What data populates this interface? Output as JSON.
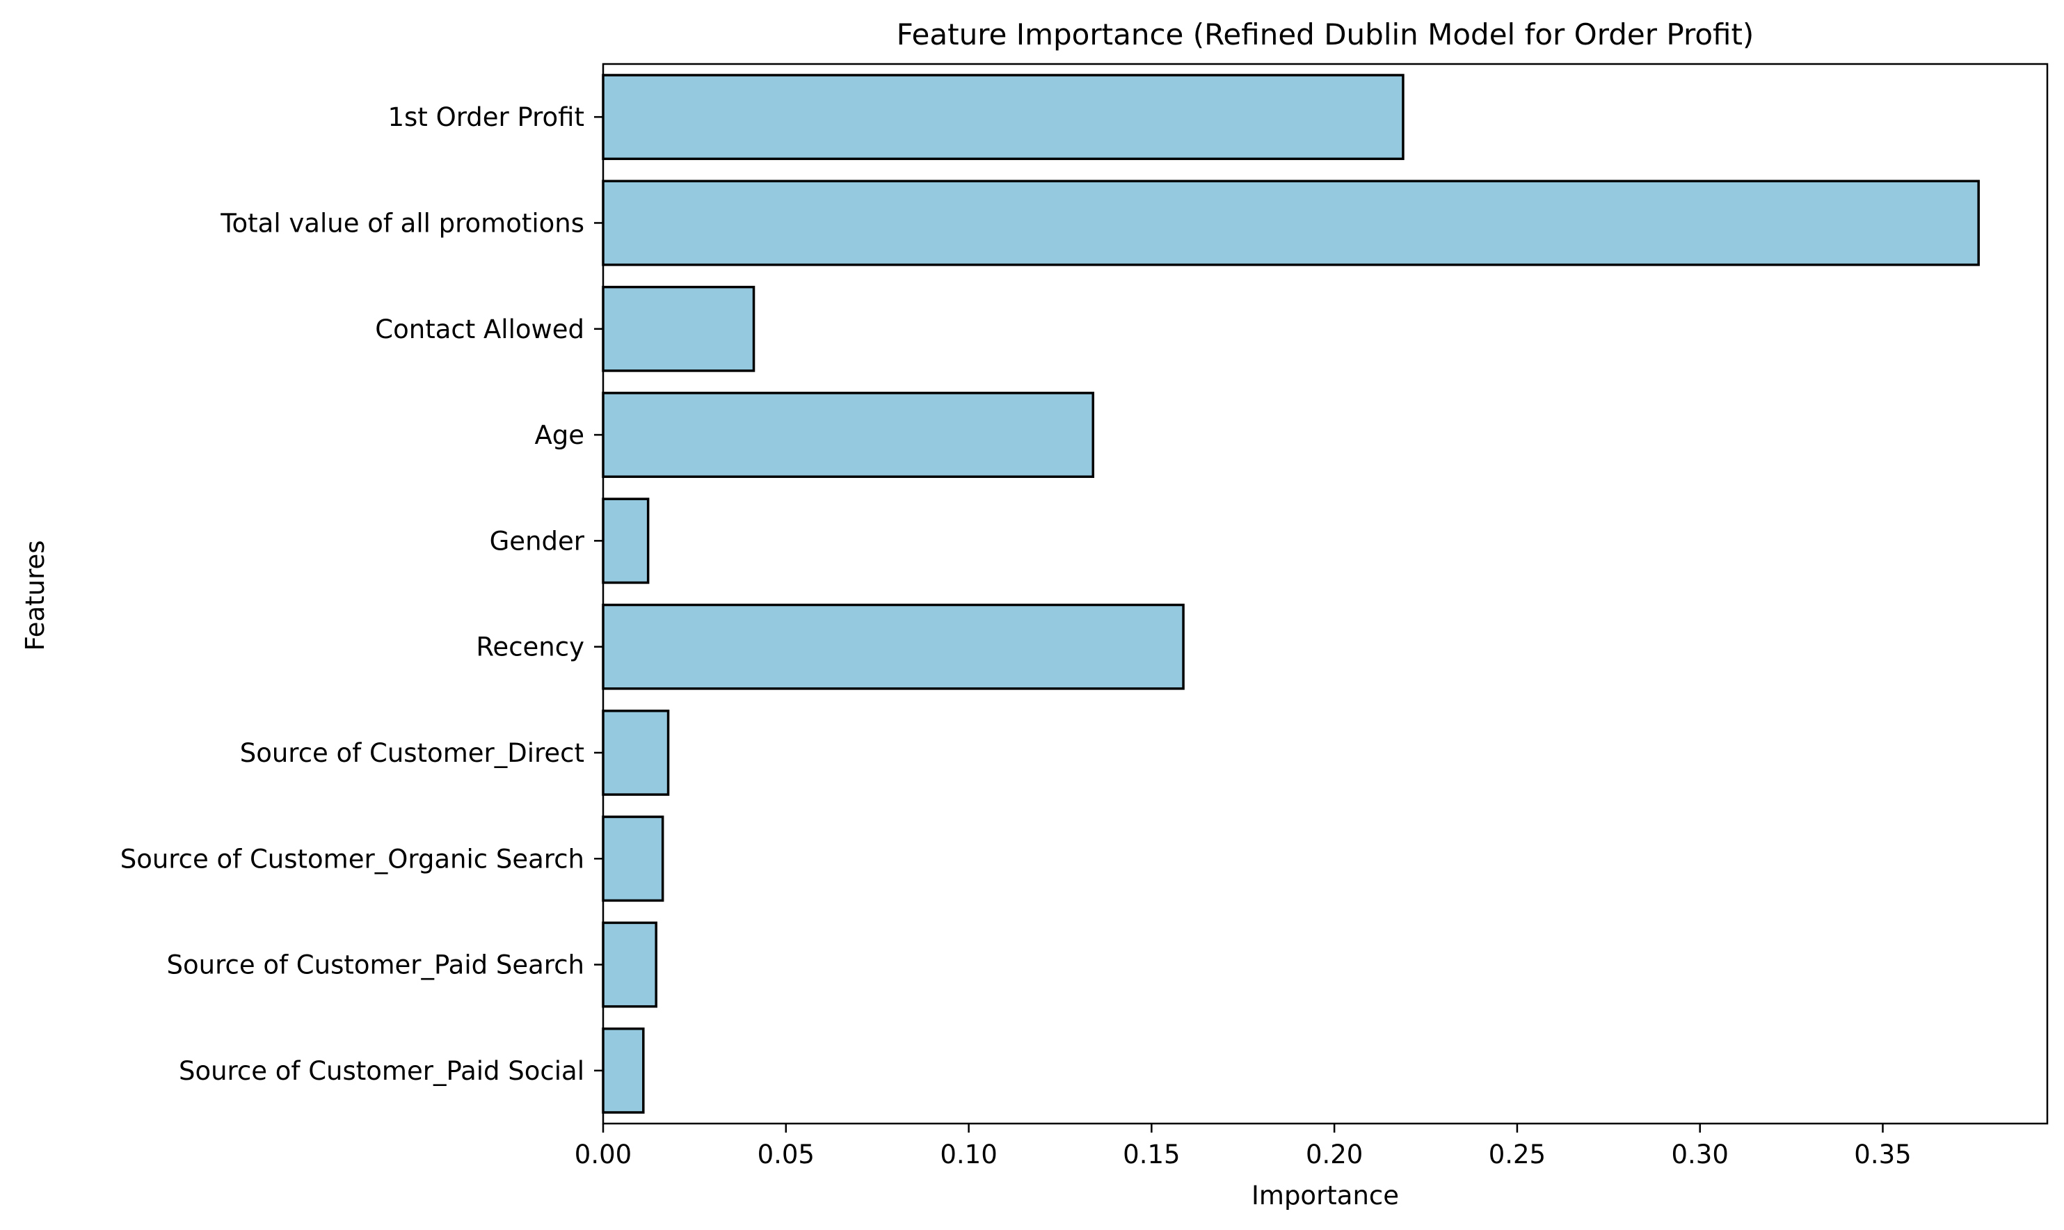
{
  "chart_data": {
    "type": "bar",
    "orientation": "horizontal",
    "title": "Feature Importance (Refined Dublin Model for Order Profit)",
    "xlabel": "Importance",
    "ylabel": "Features",
    "categories": [
      "1st Order Profit",
      "Total value of all promotions",
      "Contact Allowed",
      "Age",
      "Gender",
      "Recency",
      "Source of Customer_Direct",
      "Source of Customer_Organic Search",
      "Source of Customer_Paid Search",
      "Source of Customer_Paid Social"
    ],
    "values": [
      0.2188,
      0.3762,
      0.0412,
      0.134,
      0.0123,
      0.1587,
      0.0178,
      0.0163,
      0.0145,
      0.011
    ],
    "xlim": [
      0,
      0.395
    ],
    "xticks": [
      "0.00",
      "0.05",
      "0.10",
      "0.15",
      "0.20",
      "0.25",
      "0.30",
      "0.35"
    ],
    "grid": false,
    "bar_color": "#95c9e0",
    "edge_color": "#000000"
  }
}
